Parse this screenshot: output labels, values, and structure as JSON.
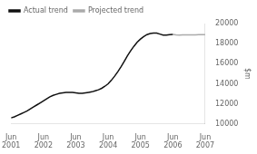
{
  "chart_data": {
    "type": "line",
    "ylabel": "$m",
    "x": [
      0.0,
      0.1,
      0.2,
      0.3,
      0.4,
      0.5,
      0.6,
      0.7,
      0.8,
      0.9,
      1.0,
      1.1,
      1.2,
      1.3,
      1.4,
      1.5,
      1.6,
      1.7,
      1.8,
      1.9,
      2.0,
      2.1,
      2.2,
      2.3,
      2.4,
      2.5,
      2.6,
      2.7,
      2.8,
      2.9,
      3.0,
      3.1,
      3.2,
      3.3,
      3.4,
      3.5,
      3.6,
      3.7,
      3.8,
      3.9,
      4.0,
      4.1,
      4.2,
      4.3,
      4.4,
      4.5,
      4.6,
      4.7,
      4.8,
      4.9,
      5.0,
      5.1,
      5.2,
      5.3,
      5.4,
      5.5,
      5.6,
      5.7,
      5.8,
      5.9,
      6.0
    ],
    "series": [
      {
        "name": "Actual trend",
        "color": "#111111",
        "values": [
          10600,
          10700,
          10850,
          11000,
          11150,
          11300,
          11500,
          11700,
          11900,
          12100,
          12300,
          12500,
          12700,
          12850,
          12950,
          13050,
          13100,
          13150,
          13150,
          13150,
          13100,
          13050,
          13050,
          13100,
          13150,
          13200,
          13300,
          13400,
          13550,
          13750,
          14000,
          14350,
          14750,
          15200,
          15700,
          16250,
          16800,
          17300,
          17750,
          18150,
          18450,
          18700,
          18900,
          19000,
          19050,
          19050,
          18950,
          18850,
          18850,
          18900,
          18920,
          null,
          null,
          null,
          null,
          null,
          null,
          null,
          null,
          null,
          null
        ]
      },
      {
        "name": "Projected trend",
        "color": "#aaaaaa",
        "values": [
          null,
          null,
          null,
          null,
          null,
          null,
          null,
          null,
          null,
          null,
          null,
          null,
          null,
          null,
          null,
          null,
          null,
          null,
          null,
          null,
          null,
          null,
          null,
          null,
          null,
          null,
          null,
          null,
          null,
          null,
          null,
          null,
          null,
          null,
          null,
          null,
          null,
          null,
          null,
          null,
          null,
          null,
          null,
          null,
          null,
          null,
          null,
          null,
          null,
          null,
          18920,
          18880,
          18860,
          18870,
          18880,
          18880,
          18880,
          18880,
          18890,
          18900,
          18900
        ]
      }
    ],
    "xlim": [
      0,
      6
    ],
    "xticks": [
      {
        "value": 0,
        "label": "Jun\n2001"
      },
      {
        "value": 1,
        "label": "Jun\n2002"
      },
      {
        "value": 2,
        "label": "Jun\n2003"
      },
      {
        "value": 3,
        "label": "Jun\n2004"
      },
      {
        "value": 4,
        "label": "Jun\n2005"
      },
      {
        "value": 5,
        "label": "Jun\n2006"
      },
      {
        "value": 6,
        "label": "Jun\n2007"
      }
    ],
    "ylim": [
      10000,
      20000
    ],
    "yticks": [
      10000,
      12000,
      14000,
      16000,
      18000,
      20000
    ],
    "grid": false,
    "legend": "upper left"
  }
}
